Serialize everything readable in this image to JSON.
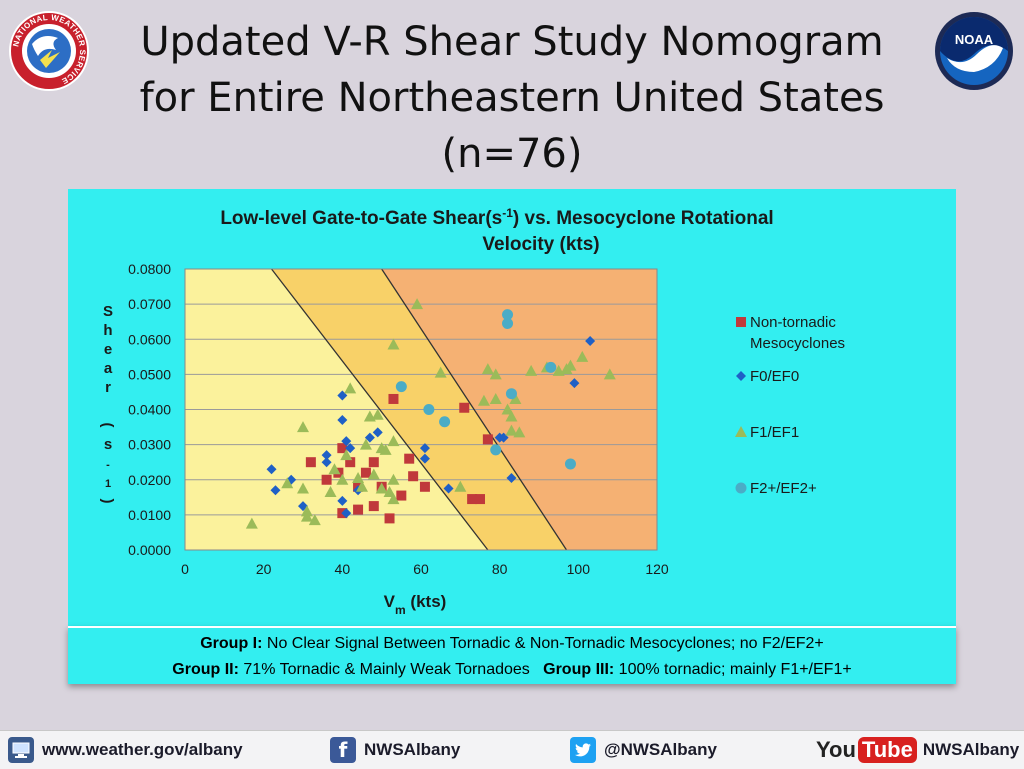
{
  "slide": {
    "title_lines": [
      "Updated V-R Shear Study Nomogram",
      "for Entire Northeastern United States",
      "(n=76)"
    ]
  },
  "logos": {
    "nws_icon": "nws-logo-icon",
    "nws_ring_text": "NATIONAL WEATHER SERVICE",
    "noaa_text": "NOAA"
  },
  "groups": {
    "line1": [
      {
        "label": "Group I:",
        "text": " No Clear Signal Between Tornadic & Non-Tornadic Mesocyclones; no F2/EF2+"
      }
    ],
    "line2": [
      {
        "label": "Group II:",
        "text": " 71% Tornadic & Mainly Weak Tornadoes   "
      },
      {
        "label": "Group III:",
        "text": " 100% tornadic; mainly F1+/EF1+"
      }
    ]
  },
  "footer": {
    "website": "www.weather.gov/albany",
    "facebook": "NWSAlbany",
    "twitter": "@NWSAlbany",
    "youtube_you": "You",
    "youtube_tube": "Tube",
    "youtube": "NWSAlbany"
  },
  "colors": {
    "panel_bg": "#33eef0",
    "zone_1": "#fbf29c",
    "zone_2": "#f8d168",
    "zone_3": "#f5b173",
    "non_tornadic": "#c0393b",
    "f0": "#1f60c6",
    "f1": "#9bbb59",
    "f2": "#4bacc6"
  },
  "chart_data": {
    "type": "scatter",
    "title_parts": [
      "Low-level Gate-to-Gate Shear(s",
      "-1",
      ") vs. Mesocyclone Rotational",
      "Velocity (kts)"
    ],
    "xlabel_main": "V",
    "xlabel_sub": "m",
    "xlabel_rest": " (kts)",
    "ylabel": "Shear (s-1)",
    "ylabel_chars": [
      "S",
      "h",
      "e",
      "a",
      "r",
      "",
      "(",
      "s",
      "-",
      "1",
      ")"
    ],
    "xlim": [
      0,
      120
    ],
    "ylim": [
      0,
      0.08
    ],
    "x_ticks": [
      "0",
      "20",
      "40",
      "60",
      "80",
      "100",
      "120"
    ],
    "y_ticks": [
      "0.0000",
      "0.0100",
      "0.0200",
      "0.0300",
      "0.0400",
      "0.0500",
      "0.0600",
      "0.0700",
      "0.0800"
    ],
    "grid": true,
    "legend_position": "right",
    "zone_boundaries": [
      {
        "x1": 22,
        "y1": 0.08,
        "x2": 77,
        "y2": 0.0
      },
      {
        "x1": 50,
        "y1": 0.08,
        "x2": 97,
        "y2": 0.0
      }
    ],
    "series": [
      {
        "name": "Non-tornadic Mesocyclones",
        "name_lines": [
          "Non-tornadic",
          "Mesocyclones"
        ],
        "marker": "square",
        "points": [
          [
            32,
            0.025
          ],
          [
            36,
            0.02
          ],
          [
            39,
            0.022
          ],
          [
            40,
            0.029
          ],
          [
            40,
            0.0105
          ],
          [
            42,
            0.025
          ],
          [
            44,
            0.018
          ],
          [
            44,
            0.0115
          ],
          [
            46,
            0.022
          ],
          [
            48,
            0.025
          ],
          [
            48,
            0.0125
          ],
          [
            50,
            0.018
          ],
          [
            52,
            0.009
          ],
          [
            53,
            0.043
          ],
          [
            55,
            0.0155
          ],
          [
            57,
            0.026
          ],
          [
            58,
            0.021
          ],
          [
            61,
            0.018
          ],
          [
            71,
            0.0405
          ],
          [
            73,
            0.0145
          ],
          [
            75,
            0.0145
          ],
          [
            77,
            0.0315
          ]
        ]
      },
      {
        "name": "F0/EF0",
        "name_lines": [
          "F0/EF0"
        ],
        "marker": "diamond",
        "points": [
          [
            22,
            0.023
          ],
          [
            23,
            0.017
          ],
          [
            27,
            0.02
          ],
          [
            30,
            0.0125
          ],
          [
            36,
            0.027
          ],
          [
            36,
            0.025
          ],
          [
            40,
            0.044
          ],
          [
            40,
            0.037
          ],
          [
            40,
            0.014
          ],
          [
            41,
            0.031
          ],
          [
            41,
            0.0105
          ],
          [
            42,
            0.029
          ],
          [
            44,
            0.017
          ],
          [
            47,
            0.032
          ],
          [
            49,
            0.0335
          ],
          [
            61,
            0.029
          ],
          [
            61,
            0.026
          ],
          [
            67,
            0.0175
          ],
          [
            80,
            0.032
          ],
          [
            81,
            0.032
          ],
          [
            83,
            0.0205
          ],
          [
            99,
            0.0475
          ],
          [
            103,
            0.0595
          ]
        ]
      },
      {
        "name": "F1/EF1",
        "name_lines": [
          "F1/EF1"
        ],
        "marker": "triangle",
        "points": [
          [
            17,
            0.0075
          ],
          [
            26,
            0.019
          ],
          [
            30,
            0.0175
          ],
          [
            30,
            0.035
          ],
          [
            31,
            0.011
          ],
          [
            31,
            0.0095
          ],
          [
            33,
            0.0085
          ],
          [
            37,
            0.0165
          ],
          [
            38,
            0.023
          ],
          [
            40,
            0.02
          ],
          [
            41,
            0.027
          ],
          [
            42,
            0.046
          ],
          [
            44,
            0.0205
          ],
          [
            45,
            0.018
          ],
          [
            46,
            0.03
          ],
          [
            47,
            0.038
          ],
          [
            48,
            0.0215
          ],
          [
            49,
            0.0385
          ],
          [
            50,
            0.0175
          ],
          [
            50,
            0.029
          ],
          [
            51,
            0.0285
          ],
          [
            52,
            0.0165
          ],
          [
            53,
            0.0585
          ],
          [
            53,
            0.031
          ],
          [
            53,
            0.02
          ],
          [
            53,
            0.0145
          ],
          [
            59,
            0.07
          ],
          [
            65,
            0.0505
          ],
          [
            70,
            0.018
          ],
          [
            76,
            0.0425
          ],
          [
            77,
            0.0515
          ],
          [
            79,
            0.043
          ],
          [
            79,
            0.05
          ],
          [
            82,
            0.04
          ],
          [
            83,
            0.038
          ],
          [
            83,
            0.034
          ],
          [
            84,
            0.043
          ],
          [
            85,
            0.0335
          ],
          [
            88,
            0.051
          ],
          [
            92,
            0.052
          ],
          [
            95,
            0.051
          ],
          [
            97,
            0.0515
          ],
          [
            98,
            0.0525
          ],
          [
            101,
            0.055
          ],
          [
            108,
            0.05
          ]
        ]
      },
      {
        "name": "F2+/EF2+",
        "name_lines": [
          "F2+/EF2+"
        ],
        "marker": "circle",
        "points": [
          [
            55,
            0.0465
          ],
          [
            62,
            0.04
          ],
          [
            66,
            0.0365
          ],
          [
            79,
            0.0285
          ],
          [
            82,
            0.067
          ],
          [
            82,
            0.0645
          ],
          [
            83,
            0.0445
          ],
          [
            93,
            0.052
          ],
          [
            98,
            0.0245
          ]
        ]
      }
    ]
  }
}
